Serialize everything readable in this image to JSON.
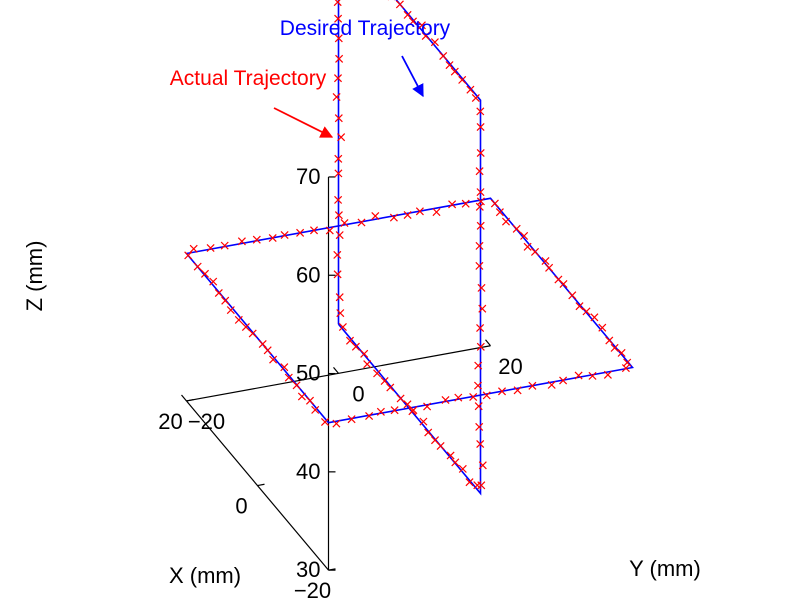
{
  "chart_data": {
    "type": "line3d",
    "title": "",
    "xlabel": "X (mm)",
    "ylabel": "Y (mm)",
    "zlabel": "Z (mm)",
    "xlim": [
      -20,
      20
    ],
    "ylim": [
      -20,
      20
    ],
    "zlim": [
      30,
      70
    ],
    "x_ticks": [
      "−20",
      "0",
      "20"
    ],
    "y_ticks": [
      "−20",
      "0",
      "20"
    ],
    "z_ticks": [
      "30",
      "40",
      "50",
      "60",
      "70"
    ],
    "grid": false,
    "series": [
      {
        "name": "Desired Trajectory",
        "style": "line",
        "color": "#0000FF",
        "segments": [
          {
            "label": "horizontal square",
            "points": [
              {
                "x": -20,
                "y": -20,
                "z": 45
              },
              {
                "x": -20,
                "y": 20,
                "z": 45
              },
              {
                "x": 20,
                "y": 20,
                "z": 45
              },
              {
                "x": 20,
                "y": -20,
                "z": 45
              },
              {
                "x": -20,
                "y": -20,
                "z": 45
              }
            ]
          },
          {
            "label": "vertical square",
            "points": [
              {
                "x": 20,
                "y": 0,
                "z": 35
              },
              {
                "x": 20,
                "y": 0,
                "z": 75
              },
              {
                "x": -20,
                "y": 0,
                "z": 75
              },
              {
                "x": -20,
                "y": 0,
                "z": 35
              },
              {
                "x": 20,
                "y": 0,
                "z": 35
              }
            ]
          }
        ]
      },
      {
        "name": "Actual Trajectory",
        "style": "markers",
        "marker": "x",
        "color": "#FF0000",
        "follows": "Desired Trajectory"
      }
    ],
    "annotations": [
      {
        "text": "Desired Trajectory",
        "color": "#0000FF",
        "points_to": "Desired Trajectory"
      },
      {
        "text": "Actual Trajectory",
        "color": "#FF0000",
        "points_to": "Actual Trajectory"
      }
    ]
  }
}
